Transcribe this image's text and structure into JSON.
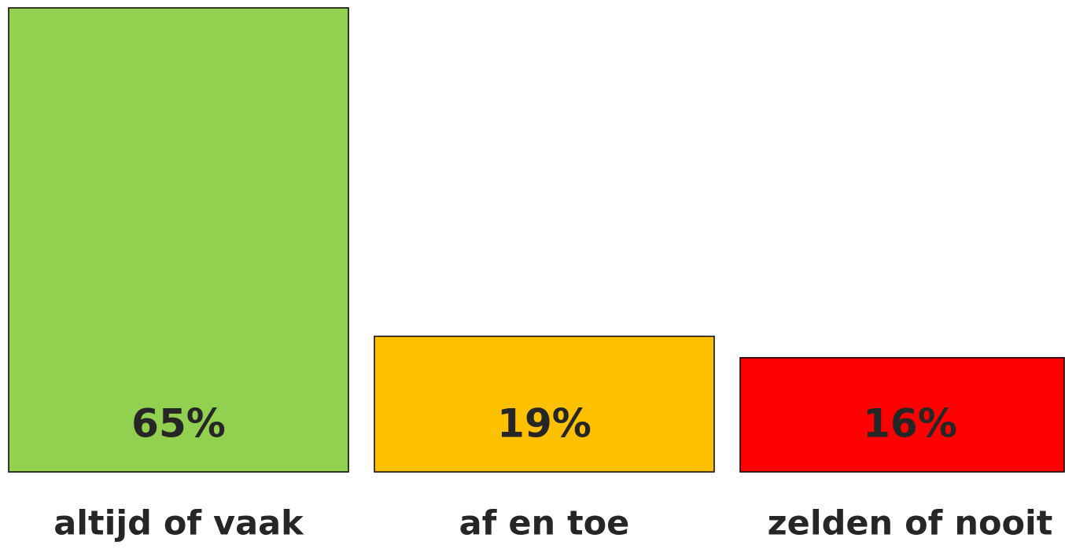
{
  "chart_data": {
    "type": "bar",
    "categories": [
      "altijd of vaak",
      "af en toe",
      "zelden of nooit"
    ],
    "values": [
      65,
      19,
      16
    ],
    "value_labels": [
      "65%",
      "19%",
      "16%"
    ],
    "colors": [
      "#92d050",
      "#ffc000",
      "#ff0000"
    ]
  }
}
